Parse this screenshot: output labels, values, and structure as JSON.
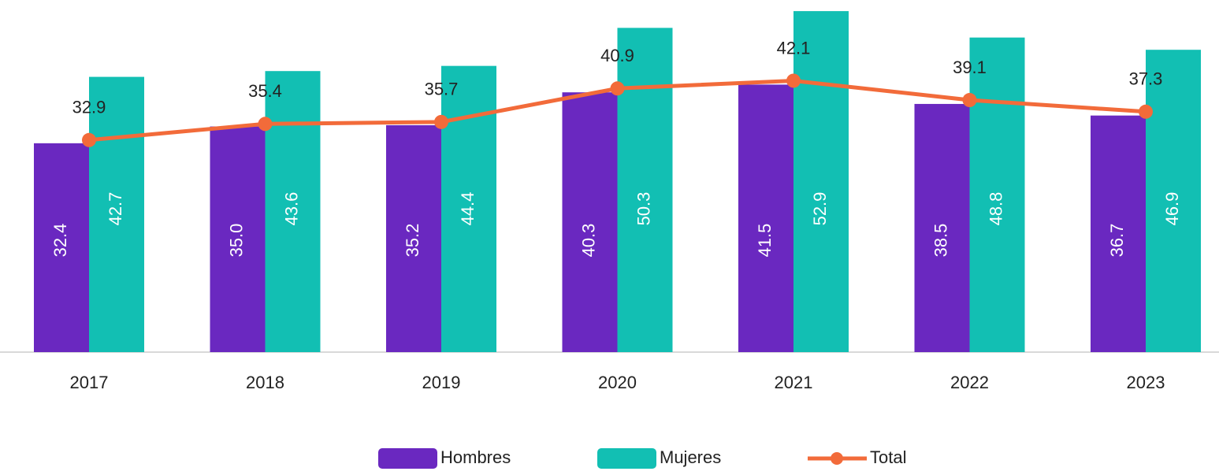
{
  "chart_data": {
    "type": "bar_line",
    "categories": [
      "2017",
      "2018",
      "2019",
      "2020",
      "2021",
      "2022",
      "2023"
    ],
    "series": [
      {
        "name": "Hombres",
        "color": "#6a28c0",
        "type": "bar",
        "values": [
          32.4,
          35.0,
          35.2,
          40.3,
          41.5,
          38.5,
          36.7
        ],
        "value_labels": [
          "32.4",
          "35.0",
          "35.2",
          "40.3",
          "41.5",
          "38.5",
          "36.7"
        ]
      },
      {
        "name": "Mujeres",
        "color": "#12bfb3",
        "type": "bar",
        "values": [
          42.7,
          43.6,
          44.4,
          50.3,
          52.9,
          48.8,
          46.9
        ]
      },
      {
        "name": "Total",
        "color": "#f26b3a",
        "type": "line",
        "values": [
          32.9,
          35.4,
          35.7,
          40.9,
          42.1,
          39.1,
          37.3
        ]
      }
    ],
    "ylim": [
      0,
      60
    ]
  }
}
